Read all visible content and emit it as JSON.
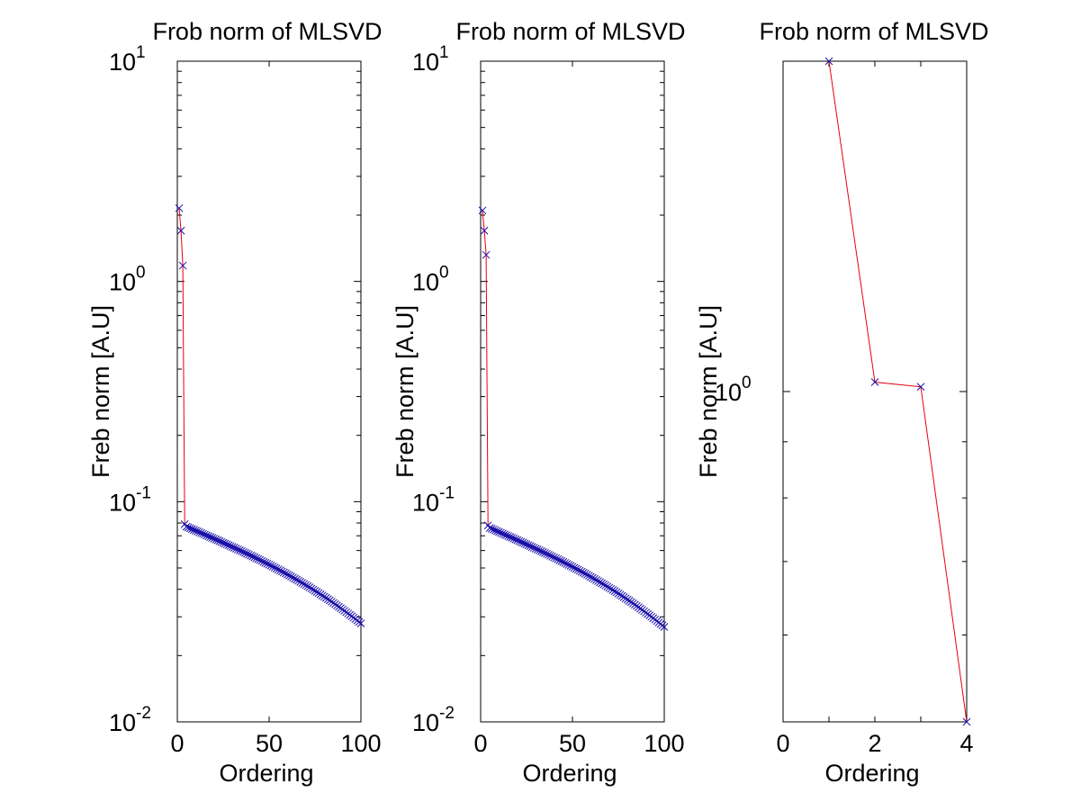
{
  "chart_data": [
    {
      "type": "line",
      "title": "Frob norm of MLSVD",
      "xlabel": "Ordering",
      "ylabel": "Freb norm [A.U]",
      "xlim": [
        0,
        100
      ],
      "ylim": [
        0.01,
        10
      ],
      "yscale": "log",
      "xticks": [
        "0",
        "50",
        "100"
      ],
      "yticks": [
        {
          "base": "10",
          "exp": "-2"
        },
        {
          "base": "10",
          "exp": "-1"
        },
        {
          "base": "10",
          "exp": "0"
        },
        {
          "base": "10",
          "exp": "1"
        }
      ],
      "line_color": "#e8000b",
      "marker": "x",
      "marker_color": "#1a0fa8",
      "x": [
        1,
        2,
        3,
        4
      ],
      "y": [
        2.15,
        1.7,
        1.18,
        0.079
      ],
      "tail": {
        "x_start": 5,
        "x_end": 100,
        "y_start": 0.077,
        "y_end": 0.028
      },
      "grid": false
    },
    {
      "type": "line",
      "title": "Frob norm of MLSVD",
      "xlabel": "Ordering",
      "ylabel": "Freb norm [A.U]",
      "xlim": [
        0,
        100
      ],
      "ylim": [
        0.01,
        10
      ],
      "yscale": "log",
      "xticks": [
        "0",
        "50",
        "100"
      ],
      "yticks": [
        {
          "base": "10",
          "exp": "-2"
        },
        {
          "base": "10",
          "exp": "-1"
        },
        {
          "base": "10",
          "exp": "0"
        },
        {
          "base": "10",
          "exp": "1"
        }
      ],
      "line_color": "#e8000b",
      "marker": "x",
      "marker_color": "#1a0fa8",
      "x": [
        1,
        2,
        3,
        4
      ],
      "y": [
        2.1,
        1.7,
        1.32,
        0.078
      ],
      "tail": {
        "x_start": 5,
        "x_end": 100,
        "y_start": 0.076,
        "y_end": 0.027
      },
      "grid": false
    },
    {
      "type": "line",
      "title": "Frob norm of MLSVD",
      "xlabel": "Ordering",
      "ylabel": "Freb norm [A.U]",
      "xlim": [
        0,
        4
      ],
      "ylim": [
        0.5,
        2.0
      ],
      "yscale": "log",
      "xticks": [
        "0",
        "2",
        "4"
      ],
      "yticks": [
        {
          "base": "10",
          "exp": "0"
        }
      ],
      "line_color": "#e8000b",
      "marker": "x",
      "marker_color": "#1a0fa8",
      "x": [
        1,
        2,
        3,
        4
      ],
      "y": [
        2.0,
        1.02,
        1.01,
        0.5
      ],
      "grid": false
    }
  ]
}
